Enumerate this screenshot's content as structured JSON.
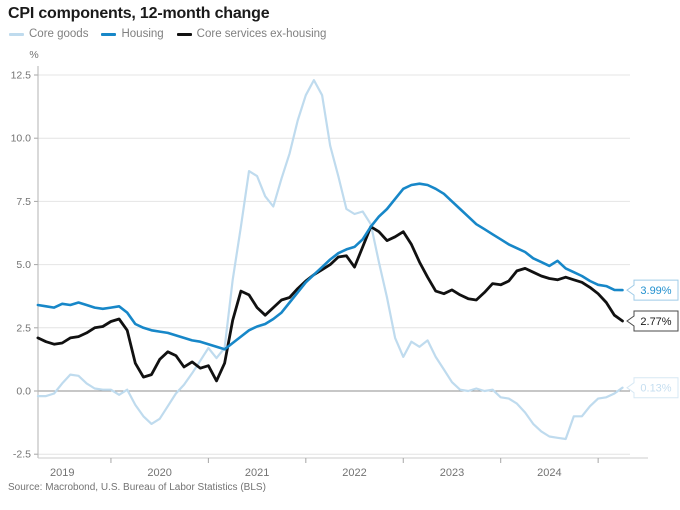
{
  "header": {
    "title": "CPI components, 12-month change"
  },
  "source": "Source: Macrobond, U.S. Bureau of Labor Statistics (BLS)",
  "chart_data": {
    "type": "line",
    "title": "CPI components, 12-month change",
    "unit_label": "%",
    "frequency": "monthly",
    "x_range": [
      "2019-04",
      "2025-04"
    ],
    "ylim": [
      -2.65,
      12.85
    ],
    "grid": "horizontal",
    "legend_position": "top",
    "x_tick_years": [
      "2019",
      "2020",
      "2021",
      "2022",
      "2023",
      "2024"
    ],
    "y_ticks": [
      -2.5,
      0.0,
      2.5,
      5.0,
      7.5,
      10.0,
      12.5
    ],
    "y_tick_labels": [
      "-2.5",
      "0.0",
      "2.5",
      "5.0",
      "7.5",
      "10.0",
      "12.5"
    ],
    "series": [
      {
        "name": "Core goods",
        "color": "#BFDBEE",
        "end_label": "0.13%",
        "label_text_color": "#c5def0",
        "label_border_color": "#d7e8f4",
        "values": [
          -0.2,
          -0.2,
          -0.1,
          0.3,
          0.65,
          0.6,
          0.3,
          0.1,
          0.05,
          0.05,
          -0.15,
          0.05,
          -0.55,
          -1.0,
          -1.3,
          -1.1,
          -0.6,
          -0.1,
          0.25,
          0.7,
          1.2,
          1.7,
          1.3,
          1.7,
          4.4,
          6.5,
          8.7,
          8.5,
          7.7,
          7.3,
          8.4,
          9.4,
          10.7,
          11.7,
          12.3,
          11.7,
          9.7,
          8.5,
          7.2,
          7.0,
          7.1,
          6.6,
          5.1,
          3.7,
          2.1,
          1.35,
          1.95,
          1.75,
          2.0,
          1.35,
          0.85,
          0.35,
          0.05,
          0.0,
          0.1,
          0.0,
          0.05,
          -0.25,
          -0.3,
          -0.5,
          -0.85,
          -1.3,
          -1.6,
          -1.8,
          -1.85,
          -1.9,
          -1.0,
          -1.0,
          -0.6,
          -0.3,
          -0.25,
          -0.1,
          0.13
        ]
      },
      {
        "name": "Housing",
        "color": "#1787C8",
        "end_label": "3.99%",
        "label_text_color": "#2391cf",
        "label_border_color": "#9fcbe7",
        "values": [
          3.4,
          3.35,
          3.3,
          3.45,
          3.4,
          3.5,
          3.4,
          3.3,
          3.25,
          3.3,
          3.35,
          3.1,
          2.65,
          2.5,
          2.4,
          2.35,
          2.3,
          2.2,
          2.1,
          2.0,
          1.95,
          1.85,
          1.75,
          1.65,
          1.9,
          2.15,
          2.4,
          2.55,
          2.65,
          2.85,
          3.1,
          3.5,
          3.9,
          4.3,
          4.6,
          4.9,
          5.2,
          5.45,
          5.6,
          5.7,
          6.0,
          6.5,
          6.9,
          7.2,
          7.6,
          8.0,
          8.15,
          8.2,
          8.15,
          8.0,
          7.8,
          7.5,
          7.2,
          6.9,
          6.6,
          6.4,
          6.2,
          6.0,
          5.8,
          5.65,
          5.5,
          5.25,
          5.1,
          4.95,
          5.15,
          4.85,
          4.7,
          4.55,
          4.35,
          4.2,
          4.15,
          4.0,
          3.99
        ]
      },
      {
        "name": "Core services ex-housing",
        "color": "#111111",
        "end_label": "2.77%",
        "label_text_color": "#1a1a1a",
        "label_border_color": "#4a4a4a",
        "values": [
          2.1,
          1.95,
          1.85,
          1.9,
          2.1,
          2.15,
          2.3,
          2.5,
          2.55,
          2.75,
          2.85,
          2.4,
          1.1,
          0.55,
          0.65,
          1.25,
          1.55,
          1.4,
          0.95,
          1.15,
          0.9,
          1.0,
          0.4,
          1.1,
          2.8,
          3.95,
          3.8,
          3.3,
          3.0,
          3.3,
          3.6,
          3.7,
          4.05,
          4.35,
          4.6,
          4.8,
          5.0,
          5.3,
          5.35,
          4.9,
          5.7,
          6.5,
          6.3,
          5.95,
          6.1,
          6.3,
          5.8,
          5.1,
          4.5,
          3.95,
          3.85,
          4.0,
          3.8,
          3.65,
          3.6,
          3.9,
          4.25,
          4.2,
          4.35,
          4.75,
          4.85,
          4.7,
          4.55,
          4.45,
          4.4,
          4.5,
          4.4,
          4.3,
          4.1,
          3.85,
          3.5,
          3.0,
          2.77
        ]
      }
    ]
  }
}
